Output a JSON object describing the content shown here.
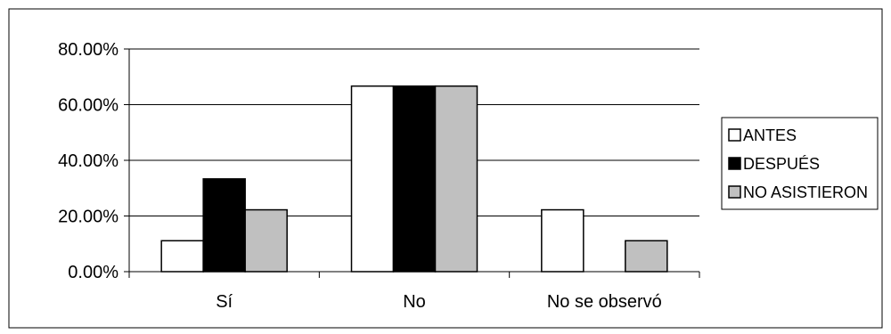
{
  "chart_data": {
    "type": "bar",
    "categories": [
      "Sí",
      "No",
      "No se observó"
    ],
    "series": [
      {
        "name": "ANTES",
        "values": [
          11.11,
          66.67,
          22.22
        ],
        "color": "#ffffff"
      },
      {
        "name": "DESPUÉS",
        "values": [
          33.33,
          66.67,
          0
        ],
        "color": "#000000"
      },
      {
        "name": "NO ASISTIERON",
        "values": [
          22.22,
          66.67,
          11.11
        ],
        "color": "#c0c0c0"
      }
    ],
    "y_ticks": [
      "0.00%",
      "20.00%",
      "40.00%",
      "60.00%",
      "80.00%"
    ],
    "ylim": [
      0,
      80
    ],
    "grid": true,
    "legend_position": "right"
  }
}
